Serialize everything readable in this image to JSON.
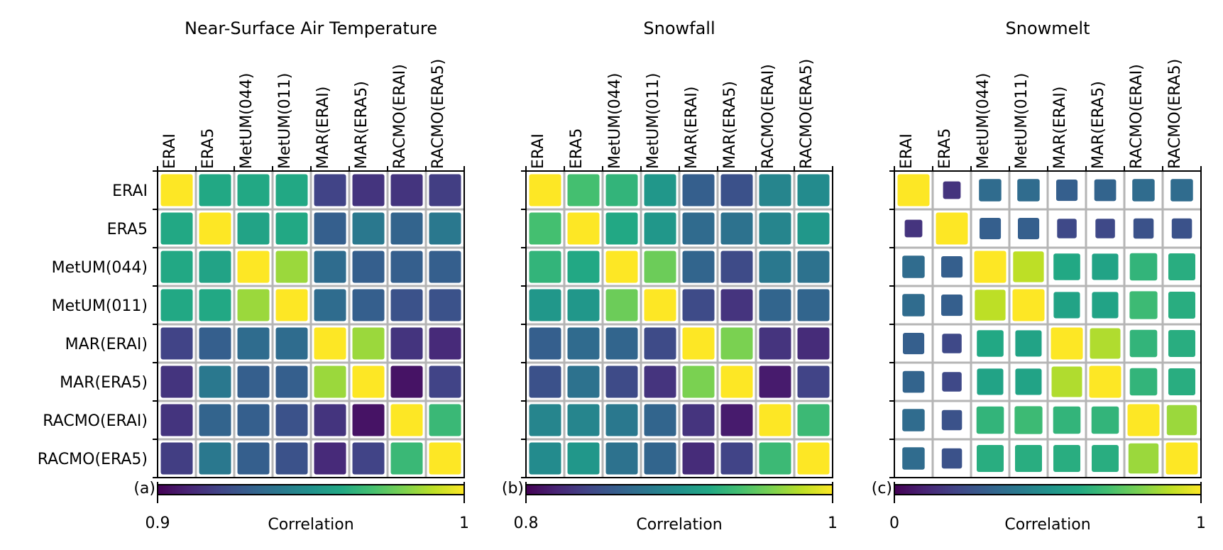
{
  "labels": [
    "ERAI",
    "ERA5",
    "MetUM(044)",
    "MetUM(011)",
    "MAR(ERAI)",
    "MAR(ERA5)",
    "RACMO(ERAI)",
    "RACMO(ERA5)"
  ],
  "colorbar_label": "Correlation",
  "colormap": "viridis",
  "chart_data": [
    {
      "type": "heatmap",
      "title": "Near-Surface Air Temperature",
      "panel_letter": "(a)",
      "vmin": 0.9,
      "vmax": 1,
      "vmin_label": "0.9",
      "vmax_label": "1",
      "matrix": [
        [
          1.0,
          0.96,
          0.96,
          0.96,
          0.92,
          0.915,
          0.915,
          0.918
        ],
        [
          0.96,
          1.0,
          0.958,
          0.96,
          0.93,
          0.94,
          0.932,
          0.94
        ],
        [
          0.96,
          0.958,
          1.0,
          0.985,
          0.935,
          0.93,
          0.93,
          0.93
        ],
        [
          0.96,
          0.96,
          0.985,
          1.0,
          0.935,
          0.93,
          0.925,
          0.925
        ],
        [
          0.92,
          0.93,
          0.935,
          0.935,
          1.0,
          0.985,
          0.915,
          0.912
        ],
        [
          0.915,
          0.94,
          0.93,
          0.93,
          0.985,
          1.0,
          0.905,
          0.92
        ],
        [
          0.915,
          0.932,
          0.93,
          0.925,
          0.915,
          0.905,
          1.0,
          0.967
        ],
        [
          0.918,
          0.94,
          0.93,
          0.925,
          0.912,
          0.92,
          0.967,
          1.0
        ]
      ]
    },
    {
      "type": "heatmap",
      "title": "Snowfall",
      "panel_letter": "(b)",
      "vmin": 0.8,
      "vmax": 1,
      "vmin_label": "0.8",
      "vmax_label": "1",
      "matrix": [
        [
          1.0,
          0.94,
          0.93,
          0.905,
          0.86,
          0.85,
          0.89,
          0.895
        ],
        [
          0.94,
          1.0,
          0.92,
          0.905,
          0.87,
          0.875,
          0.89,
          0.905
        ],
        [
          0.93,
          0.92,
          1.0,
          0.955,
          0.865,
          0.845,
          0.88,
          0.875
        ],
        [
          0.905,
          0.905,
          0.955,
          1.0,
          0.845,
          0.83,
          0.865,
          0.865
        ],
        [
          0.86,
          0.87,
          0.865,
          0.845,
          1.0,
          0.96,
          0.83,
          0.825
        ],
        [
          0.85,
          0.875,
          0.845,
          0.83,
          0.96,
          1.0,
          0.815,
          0.84
        ],
        [
          0.89,
          0.89,
          0.88,
          0.865,
          0.83,
          0.815,
          1.0,
          0.935
        ],
        [
          0.895,
          0.905,
          0.875,
          0.865,
          0.825,
          0.84,
          0.935,
          1.0
        ]
      ]
    },
    {
      "type": "heatmap",
      "title": "Snowmelt",
      "panel_letter": "(c)",
      "vmin": 0,
      "vmax": 1,
      "vmin_label": "0",
      "vmax_label": "1",
      "matrix": [
        [
          1.0,
          0.15,
          0.35,
          0.35,
          0.3,
          0.32,
          0.35,
          0.35
        ],
        [
          0.15,
          1.0,
          0.3,
          0.3,
          0.22,
          0.22,
          0.25,
          0.25
        ],
        [
          0.35,
          0.3,
          1.0,
          0.9,
          0.6,
          0.58,
          0.65,
          0.62
        ],
        [
          0.35,
          0.3,
          0.9,
          1.0,
          0.58,
          0.58,
          0.68,
          0.62
        ],
        [
          0.3,
          0.22,
          0.6,
          0.58,
          1.0,
          0.88,
          0.65,
          0.62
        ],
        [
          0.32,
          0.22,
          0.58,
          0.58,
          0.88,
          1.0,
          0.65,
          0.62
        ],
        [
          0.35,
          0.25,
          0.65,
          0.68,
          0.65,
          0.65,
          1.0,
          0.85
        ],
        [
          0.35,
          0.25,
          0.62,
          0.62,
          0.62,
          0.62,
          0.85,
          1.0
        ]
      ]
    }
  ]
}
